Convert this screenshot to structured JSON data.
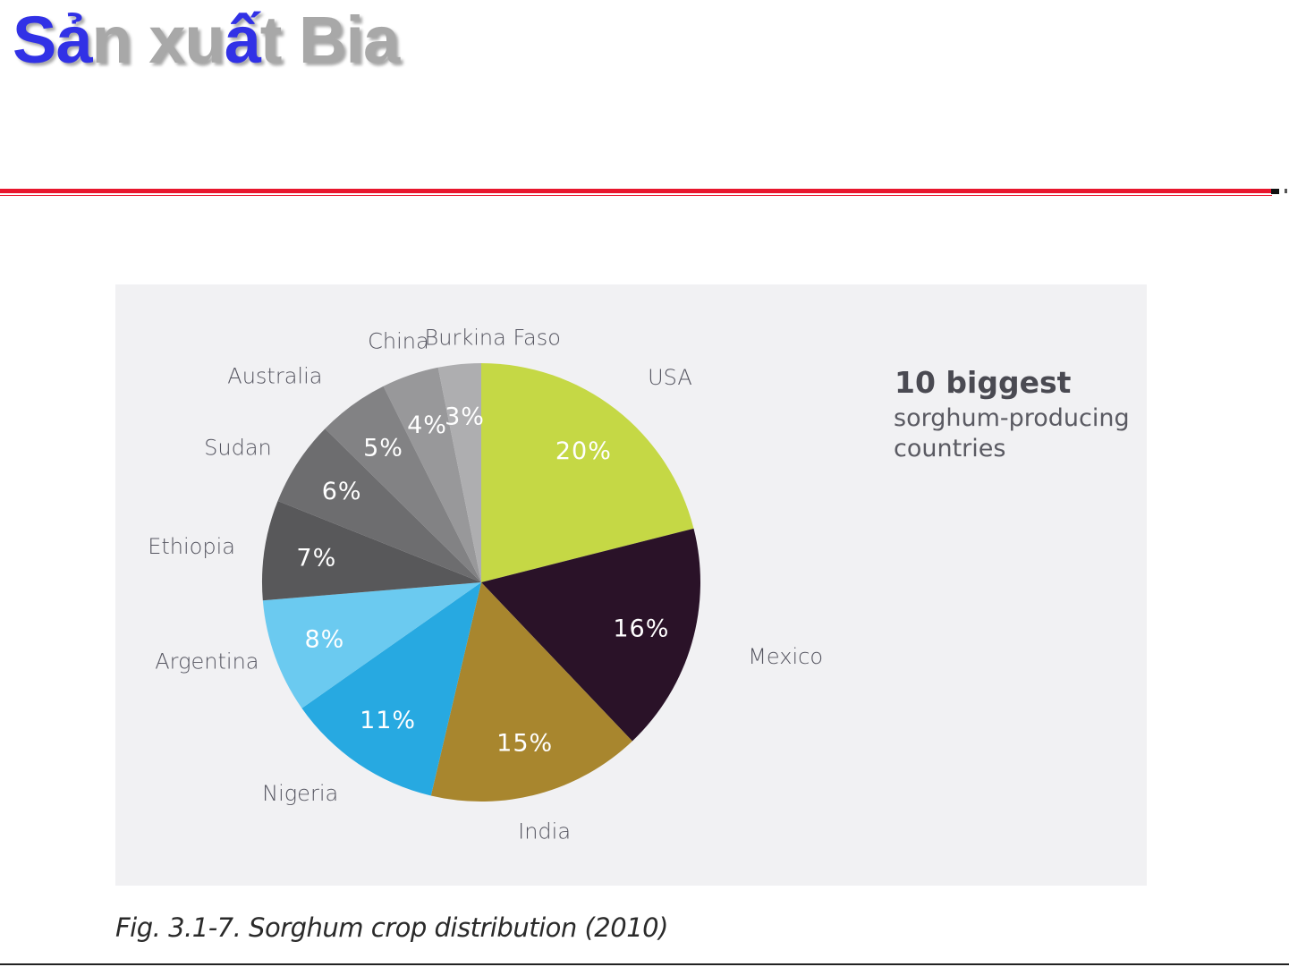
{
  "slide": {
    "title_parts": [
      "Sả",
      "n xu",
      "ấ",
      "t Bia"
    ],
    "title_colors": [
      "#3131e6",
      "#a8a8a8"
    ]
  },
  "legend": {
    "heading": "10 biggest",
    "subtitle": "sorghum-producing countries"
  },
  "caption": "Fig. 3.1-7. Sorghum crop distribution (2010)",
  "chart_data": {
    "type": "pie",
    "start_angle_deg": 0,
    "direction": "clockwise",
    "slices": [
      {
        "label": "USA",
        "value": 20,
        "value_label": "20%",
        "color": "#c5d845",
        "value_text_color": "#ffffff"
      },
      {
        "label": "Mexico",
        "value": 16,
        "value_label": "16%",
        "color": "#2a1228",
        "value_text_color": "#ffffff"
      },
      {
        "label": "India",
        "value": 15,
        "value_label": "15%",
        "color": "#a8862e",
        "value_text_color": "#ffffff"
      },
      {
        "label": "Nigeria",
        "value": 11,
        "value_label": "11%",
        "color": "#27a9e1",
        "value_text_color": "#ffffff"
      },
      {
        "label": "Argentina",
        "value": 8,
        "value_label": "8%",
        "color": "#6bcaf0",
        "value_text_color": "#ffffff"
      },
      {
        "label": "Ethiopia",
        "value": 7,
        "value_label": "7%",
        "color": "#58585a",
        "value_text_color": "#ffffff"
      },
      {
        "label": "Sudan",
        "value": 6,
        "value_label": "6%",
        "color": "#6d6d6f",
        "value_text_color": "#ffffff"
      },
      {
        "label": "Australia",
        "value": 5,
        "value_label": "5%",
        "color": "#828284",
        "value_text_color": "#ffffff"
      },
      {
        "label": "China",
        "value": 4,
        "value_label": "4%",
        "color": "#98989a",
        "value_text_color": "#ffffff"
      },
      {
        "label": "Burkina Faso",
        "value": 3,
        "value_label": "3%",
        "color": "#aeaeb0",
        "value_text_color": "#ffffff"
      }
    ]
  }
}
